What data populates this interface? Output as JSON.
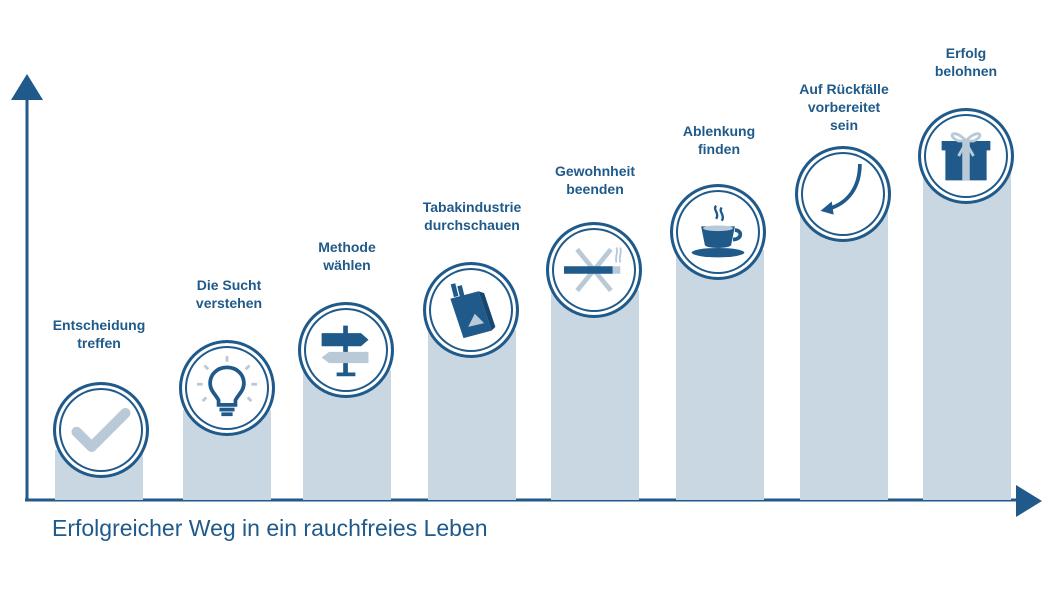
{
  "title": "Erfolgreicher Weg in ein rauchfreies Leben",
  "colors": {
    "primary": "#1f5a8a",
    "bar": "#c9d7e2",
    "icon_light": "#b9c9d8"
  },
  "steps": [
    {
      "label_lines": [
        "Entscheidung",
        "treffen"
      ],
      "icon": "checkmark-icon"
    },
    {
      "label_lines": [
        "Die Sucht",
        "verstehen"
      ],
      "icon": "lightbulb-icon"
    },
    {
      "label_lines": [
        "Methode",
        "wählen"
      ],
      "icon": "signpost-icon"
    },
    {
      "label_lines": [
        "Tabakindustrie",
        "durchschauen"
      ],
      "icon": "cigarette-pack-icon"
    },
    {
      "label_lines": [
        "Gewohnheit",
        "beenden"
      ],
      "icon": "crossed-cigarette-icon"
    },
    {
      "label_lines": [
        "Ablenkung",
        "finden"
      ],
      "icon": "coffee-cup-icon"
    },
    {
      "label_lines": [
        "Auf Rückfälle",
        "vorbereitet",
        "sein"
      ],
      "icon": "curved-arrow-icon"
    },
    {
      "label_lines": [
        "Erfolg",
        "belohnen"
      ],
      "icon": "gift-icon"
    }
  ]
}
